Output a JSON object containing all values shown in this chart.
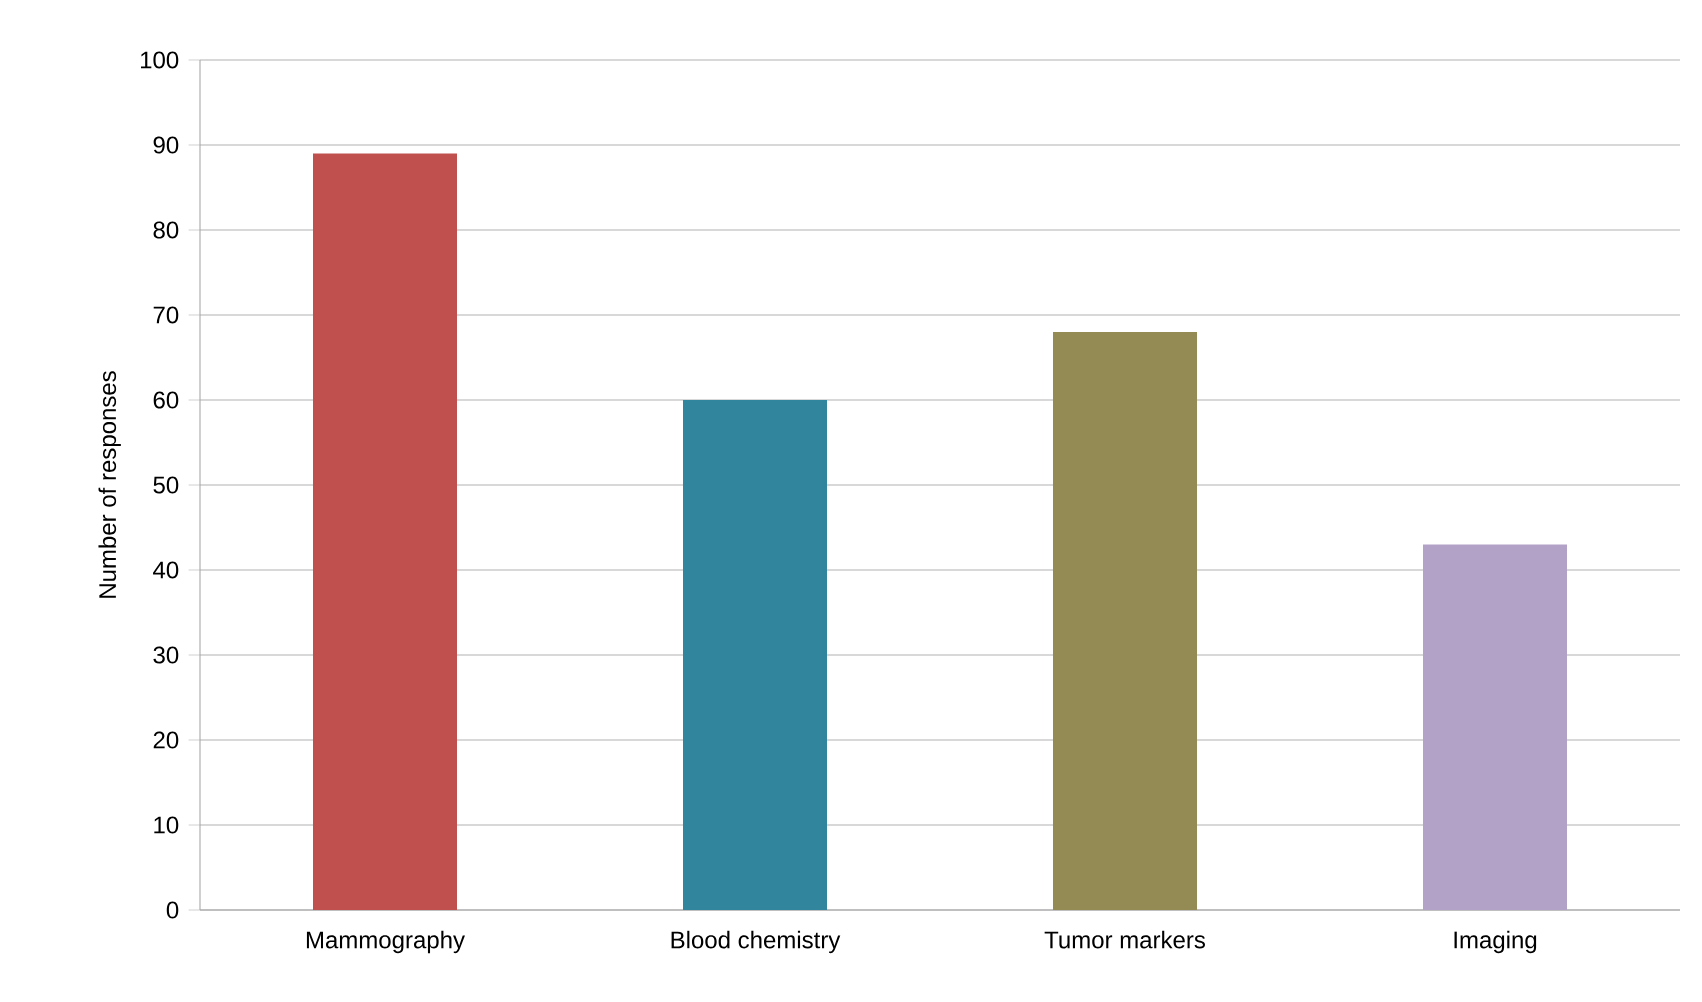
{
  "chart_data": {
    "type": "bar",
    "ylabel": "Number of responses",
    "categories": [
      "Mammography",
      "Blood chemistry",
      "Tumor markers",
      "Imaging"
    ],
    "values": [
      89,
      60,
      68,
      43
    ],
    "colors": [
      "#c0504d",
      "#31859c",
      "#948a54",
      "#b3a2c7"
    ],
    "ylim": [
      0,
      100
    ],
    "yticks": [
      0,
      10,
      20,
      30,
      40,
      50,
      60,
      70,
      80,
      90,
      100
    ],
    "grid": "y"
  }
}
